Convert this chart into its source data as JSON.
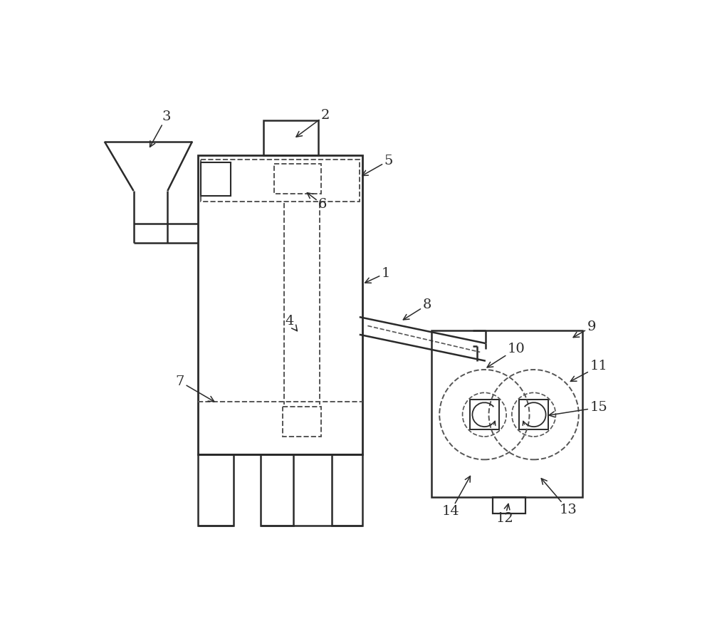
{
  "bg_color": "#ffffff",
  "line_color": "#2a2a2a",
  "dashed_color": "#555555",
  "fig_width": 10.0,
  "fig_height": 8.86,
  "dpi": 100
}
